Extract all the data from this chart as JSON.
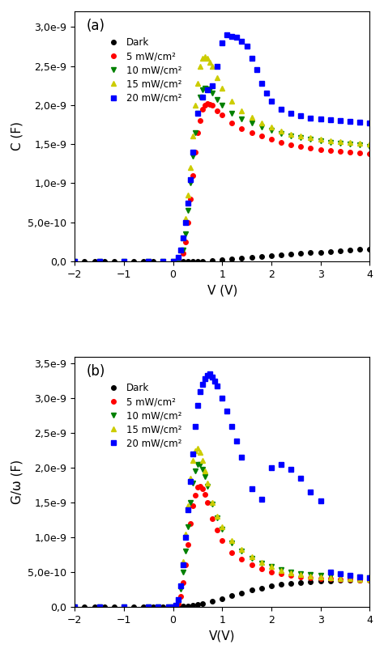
{
  "panel_a": {
    "title": "(a)",
    "xlabel": "V (V)",
    "ylabel": "C (F)",
    "xlim": [
      -2,
      4
    ],
    "ylim": [
      0,
      3.2e-09
    ],
    "yticks": [
      0,
      5e-10,
      1e-09,
      1.5e-09,
      2e-09,
      2.5e-09,
      3e-09
    ],
    "ytick_labels": [
      "0,0",
      "5,0e-10",
      "1,0e-9",
      "1,5e-9",
      "2,0e-9",
      "2,5e-9",
      "3,0e-9"
    ],
    "xticks": [
      -2,
      -1,
      0,
      1,
      2,
      3,
      4
    ],
    "series": [
      {
        "label": "Dark",
        "color": "black",
        "marker": "o",
        "ms": 4,
        "V": [
          -2.0,
          -1.8,
          -1.6,
          -1.4,
          -1.2,
          -1.0,
          -0.8,
          -0.6,
          -0.4,
          -0.2,
          0.0,
          0.1,
          0.2,
          0.3,
          0.4,
          0.5,
          0.6,
          0.8,
          1.0,
          1.2,
          1.4,
          1.6,
          1.8,
          2.0,
          2.2,
          2.4,
          2.6,
          2.8,
          3.0,
          3.2,
          3.4,
          3.6,
          3.8,
          4.0
        ],
        "C": [
          0.0,
          0.0,
          0.0,
          0.0,
          0.0,
          0.0,
          0.0,
          0.0,
          0.0,
          0.0,
          0.0,
          0.0,
          0.0,
          0.0,
          0.0,
          0.0,
          0.0,
          1e-11,
          2e-11,
          3e-11,
          4e-11,
          5e-11,
          6e-11,
          7e-11,
          8e-11,
          9e-11,
          1e-10,
          1.1e-10,
          1.2e-10,
          1.3e-10,
          1.4e-10,
          1.5e-10,
          1.55e-10,
          1.6e-10
        ]
      },
      {
        "label": "5 mW/cm²",
        "color": "red",
        "marker": "o",
        "ms": 4,
        "V": [
          -2.0,
          -1.5,
          -1.0,
          -0.5,
          -0.2,
          0.0,
          0.1,
          0.2,
          0.25,
          0.3,
          0.35,
          0.4,
          0.45,
          0.5,
          0.55,
          0.6,
          0.65,
          0.7,
          0.75,
          0.8,
          0.9,
          1.0,
          1.2,
          1.4,
          1.6,
          1.8,
          2.0,
          2.2,
          2.4,
          2.6,
          2.8,
          3.0,
          3.2,
          3.4,
          3.6,
          3.8,
          4.0
        ],
        "C": [
          0.0,
          0.0,
          0.0,
          0.0,
          0.0,
          0.0,
          0.0,
          1e-10,
          2.5e-10,
          5e-10,
          8e-10,
          1.1e-09,
          1.4e-09,
          1.65e-09,
          1.8e-09,
          1.95e-09,
          2e-09,
          2.02e-09,
          2.01e-09,
          2e-09,
          1.93e-09,
          1.87e-09,
          1.77e-09,
          1.7e-09,
          1.65e-09,
          1.6e-09,
          1.56e-09,
          1.52e-09,
          1.49e-09,
          1.47e-09,
          1.45e-09,
          1.43e-09,
          1.42e-09,
          1.41e-09,
          1.4e-09,
          1.39e-09,
          1.38e-09
        ]
      },
      {
        "label": "10 mW/cm²",
        "color": "green",
        "marker": "v",
        "ms": 5,
        "V": [
          -2.0,
          -1.5,
          -1.0,
          -0.5,
          -0.2,
          0.0,
          0.1,
          0.2,
          0.25,
          0.3,
          0.35,
          0.4,
          0.45,
          0.5,
          0.55,
          0.6,
          0.65,
          0.7,
          0.75,
          0.8,
          0.9,
          1.0,
          1.2,
          1.4,
          1.6,
          1.8,
          2.0,
          2.2,
          2.4,
          2.6,
          2.8,
          3.0,
          3.2,
          3.4,
          3.6,
          3.8,
          4.0
        ],
        "C": [
          0.0,
          0.0,
          0.0,
          0.0,
          0.0,
          0.0,
          0.0,
          1.5e-10,
          3.5e-10,
          6.5e-10,
          1e-09,
          1.35e-09,
          1.65e-09,
          1.9e-09,
          2.1e-09,
          2.2e-09,
          2.22e-09,
          2.21e-09,
          2.19e-09,
          2.15e-09,
          2.07e-09,
          2e-09,
          1.9e-09,
          1.82e-09,
          1.77e-09,
          1.72e-09,
          1.68e-09,
          1.64e-09,
          1.61e-09,
          1.58e-09,
          1.56e-09,
          1.54e-09,
          1.52e-09,
          1.51e-09,
          1.5e-09,
          1.49e-09,
          1.47e-09
        ]
      },
      {
        "label": "15 mW/cm²",
        "color": "#CCCC00",
        "marker": "^",
        "ms": 5,
        "V": [
          -2.0,
          -1.5,
          -1.0,
          -0.5,
          -0.2,
          0.0,
          0.1,
          0.15,
          0.2,
          0.25,
          0.3,
          0.35,
          0.4,
          0.45,
          0.5,
          0.55,
          0.6,
          0.65,
          0.7,
          0.75,
          0.8,
          0.9,
          1.0,
          1.2,
          1.4,
          1.6,
          1.8,
          2.0,
          2.2,
          2.4,
          2.6,
          2.8,
          3.0,
          3.2,
          3.4,
          3.6,
          3.8,
          4.0
        ],
        "C": [
          0.0,
          0.0,
          0.0,
          0.0,
          0.0,
          0.0,
          5e-11,
          1.5e-10,
          3e-10,
          5.5e-10,
          8.5e-10,
          1.2e-09,
          1.6e-09,
          2e-09,
          2.28e-09,
          2.5e-09,
          2.6e-09,
          2.62e-09,
          2.6e-09,
          2.55e-09,
          2.5e-09,
          2.35e-09,
          2.22e-09,
          2.05e-09,
          1.93e-09,
          1.84e-09,
          1.77e-09,
          1.72e-09,
          1.67e-09,
          1.63e-09,
          1.6e-09,
          1.58e-09,
          1.56e-09,
          1.54e-09,
          1.53e-09,
          1.52e-09,
          1.51e-09,
          1.5e-09
        ]
      },
      {
        "label": "20 mW/cm²",
        "color": "blue",
        "marker": "s",
        "ms": 5,
        "V": [
          -2.0,
          -1.5,
          -1.0,
          -0.5,
          -0.2,
          0.0,
          0.1,
          0.15,
          0.2,
          0.25,
          0.3,
          0.35,
          0.4,
          0.5,
          0.6,
          0.7,
          0.8,
          0.9,
          1.0,
          1.1,
          1.2,
          1.3,
          1.4,
          1.5,
          1.6,
          1.7,
          1.8,
          1.9,
          2.0,
          2.2,
          2.4,
          2.6,
          2.8,
          3.0,
          3.2,
          3.4,
          3.6,
          3.8,
          4.0
        ],
        "C": [
          0.0,
          0.0,
          0.0,
          0.0,
          0.0,
          0.0,
          5e-11,
          1.5e-10,
          3e-10,
          5e-10,
          7.5e-10,
          1.05e-09,
          1.4e-09,
          1.9e-09,
          2.1e-09,
          2.2e-09,
          2.25e-09,
          2.5e-09,
          2.8e-09,
          2.9e-09,
          2.88e-09,
          2.87e-09,
          2.82e-09,
          2.75e-09,
          2.6e-09,
          2.45e-09,
          2.28e-09,
          2.15e-09,
          2.05e-09,
          1.95e-09,
          1.9e-09,
          1.86e-09,
          1.83e-09,
          1.82e-09,
          1.81e-09,
          1.8e-09,
          1.79e-09,
          1.78e-09,
          1.77e-09
        ]
      }
    ]
  },
  "panel_b": {
    "title": "(b)",
    "xlabel": "V(V)",
    "ylabel": "G/ω (F)",
    "xlim": [
      -2,
      4
    ],
    "ylim": [
      0,
      3.6e-09
    ],
    "yticks": [
      0,
      5e-10,
      1e-09,
      1.5e-09,
      2e-09,
      2.5e-09,
      3e-09,
      3.5e-09
    ],
    "ytick_labels": [
      "0,0",
      "5,0e-10",
      "1,0e-9",
      "1,5e-9",
      "2,0e-9",
      "2,5e-9",
      "3,0e-9",
      "3,5e-9"
    ],
    "xticks": [
      -2,
      -1,
      0,
      1,
      2,
      3,
      4
    ],
    "series": [
      {
        "label": "Dark",
        "color": "black",
        "marker": "o",
        "ms": 4,
        "V": [
          -2.0,
          -1.8,
          -1.6,
          -1.4,
          -1.2,
          -1.0,
          -0.8,
          -0.6,
          -0.4,
          -0.2,
          0.0,
          0.1,
          0.2,
          0.3,
          0.4,
          0.5,
          0.6,
          0.8,
          1.0,
          1.2,
          1.4,
          1.6,
          1.8,
          2.0,
          2.2,
          2.4,
          2.6,
          2.8,
          3.0,
          3.2,
          3.4,
          3.6,
          3.8,
          4.0
        ],
        "G": [
          0.0,
          0.0,
          0.0,
          0.0,
          0.0,
          0.0,
          0.0,
          0.0,
          0.0,
          0.0,
          0.0,
          0.0,
          5e-12,
          1e-11,
          2e-11,
          3e-11,
          5e-11,
          8e-11,
          1.2e-10,
          1.6e-10,
          2e-10,
          2.4e-10,
          2.7e-10,
          3e-10,
          3.2e-10,
          3.4e-10,
          3.5e-10,
          3.6e-10,
          3.7e-10,
          3.75e-10,
          3.8e-10,
          3.82e-10,
          3.83e-10,
          3.85e-10
        ]
      },
      {
        "label": "5 mW/cm²",
        "color": "red",
        "marker": "o",
        "ms": 4,
        "V": [
          -2.0,
          -1.5,
          -1.0,
          -0.5,
          -0.3,
          -0.1,
          0.0,
          0.05,
          0.1,
          0.15,
          0.2,
          0.25,
          0.3,
          0.35,
          0.4,
          0.45,
          0.5,
          0.55,
          0.6,
          0.65,
          0.7,
          0.8,
          0.9,
          1.0,
          1.2,
          1.4,
          1.6,
          1.8,
          2.0,
          2.2,
          2.4,
          2.6,
          2.8,
          3.0,
          3.2,
          3.4,
          3.6,
          3.8,
          4.0
        ],
        "G": [
          0.0,
          0.0,
          0.0,
          0.0,
          0.0,
          0.0,
          0.0,
          1e-11,
          5e-11,
          1.5e-10,
          3.5e-10,
          6e-10,
          9e-10,
          1.2e-09,
          1.45e-09,
          1.6e-09,
          1.72e-09,
          1.73e-09,
          1.7e-09,
          1.62e-09,
          1.5e-09,
          1.27e-09,
          1.1e-09,
          9.5e-10,
          7.8e-10,
          6.8e-10,
          6e-10,
          5.4e-10,
          5e-10,
          4.7e-10,
          4.5e-10,
          4.3e-10,
          4.2e-10,
          4.1e-10,
          4e-10,
          3.95e-10,
          3.9e-10,
          3.85e-10,
          3.8e-10
        ]
      },
      {
        "label": "10 mW/cm²",
        "color": "green",
        "marker": "v",
        "ms": 5,
        "V": [
          -2.0,
          -1.5,
          -1.0,
          -0.5,
          -0.3,
          -0.1,
          0.0,
          0.05,
          0.1,
          0.15,
          0.2,
          0.25,
          0.3,
          0.35,
          0.4,
          0.45,
          0.5,
          0.55,
          0.6,
          0.65,
          0.7,
          0.8,
          0.9,
          1.0,
          1.2,
          1.4,
          1.6,
          1.8,
          2.0,
          2.2,
          2.4,
          2.6,
          2.8,
          3.0,
          3.2,
          3.4,
          3.6,
          3.8,
          4.0
        ],
        "G": [
          0.0,
          0.0,
          0.0,
          0.0,
          0.0,
          0.0,
          0.0,
          1e-11,
          8e-11,
          2.5e-10,
          5e-10,
          8e-10,
          1.15e-09,
          1.5e-09,
          1.78e-09,
          1.95e-09,
          2.05e-09,
          2.05e-09,
          1.98e-09,
          1.87e-09,
          1.73e-09,
          1.48e-09,
          1.28e-09,
          1.12e-09,
          9.2e-10,
          8e-10,
          7e-10,
          6.3e-10,
          5.8e-10,
          5.3e-10,
          5e-10,
          4.8e-10,
          4.6e-10,
          4.5e-10,
          4.4e-10,
          4.35e-10,
          4.3e-10,
          4.25e-10,
          4.2e-10
        ]
      },
      {
        "label": "15 mW/cm²",
        "color": "#CCCC00",
        "marker": "^",
        "ms": 5,
        "V": [
          -2.0,
          -1.5,
          -1.0,
          -0.5,
          -0.3,
          -0.1,
          0.0,
          0.05,
          0.1,
          0.15,
          0.2,
          0.25,
          0.3,
          0.35,
          0.4,
          0.45,
          0.5,
          0.55,
          0.6,
          0.65,
          0.7,
          0.8,
          0.9,
          1.0,
          1.2,
          1.4,
          1.6,
          1.8,
          2.0,
          2.2,
          2.4,
          2.6,
          2.8,
          3.0,
          3.2,
          3.4,
          3.6,
          3.8,
          4.0
        ],
        "G": [
          0.0,
          0.0,
          0.0,
          0.0,
          0.0,
          0.0,
          0.0,
          2e-11,
          1e-10,
          3e-10,
          6.5e-10,
          1.05e-09,
          1.45e-09,
          1.85e-09,
          2.1e-09,
          2.25e-09,
          2.28e-09,
          2.22e-09,
          2.1e-09,
          1.95e-09,
          1.78e-09,
          1.5e-09,
          1.3e-09,
          1.15e-09,
          9.5e-10,
          8.3e-10,
          7.2e-10,
          6.4e-10,
          5.8e-10,
          5.2e-10,
          4.9e-10,
          4.6e-10,
          4.4e-10,
          4.3e-10,
          4.2e-10,
          4.1e-10,
          4e-10,
          3.95e-10,
          3.9e-10
        ]
      },
      {
        "label": "20 mW/cm²",
        "color": "blue",
        "marker": "s",
        "ms": 5,
        "V": [
          -2.0,
          -1.5,
          -1.0,
          -0.5,
          -0.3,
          -0.1,
          0.0,
          0.05,
          0.1,
          0.15,
          0.2,
          0.25,
          0.3,
          0.35,
          0.4,
          0.45,
          0.5,
          0.55,
          0.6,
          0.65,
          0.7,
          0.75,
          0.8,
          0.85,
          0.9,
          1.0,
          1.1,
          1.2,
          1.3,
          1.4,
          1.6,
          1.8,
          2.0,
          2.2,
          2.4,
          2.6,
          2.8,
          3.0,
          3.2,
          3.4,
          3.6,
          3.8,
          4.0
        ],
        "G": [
          0.0,
          0.0,
          0.0,
          0.0,
          0.0,
          0.0,
          0.0,
          2e-11,
          1e-10,
          3e-10,
          6e-10,
          1e-09,
          1.4e-09,
          1.8e-09,
          2.2e-09,
          2.6e-09,
          2.9e-09,
          3.1e-09,
          3.2e-09,
          3.28e-09,
          3.33e-09,
          3.35e-09,
          3.3e-09,
          3.25e-09,
          3.18e-09,
          3e-09,
          2.82e-09,
          2.6e-09,
          2.38e-09,
          2.15e-09,
          1.7e-09,
          1.55e-09,
          2e-09,
          2.05e-09,
          1.98e-09,
          1.85e-09,
          1.65e-09,
          1.52e-09,
          5e-10,
          4.8e-10,
          4.5e-10,
          4.3e-10,
          4.2e-10
        ]
      }
    ]
  },
  "background_color": "white",
  "legend_fontsize": 8.5,
  "tick_fontsize": 9,
  "label_fontsize": 11,
  "title_fontsize": 12
}
